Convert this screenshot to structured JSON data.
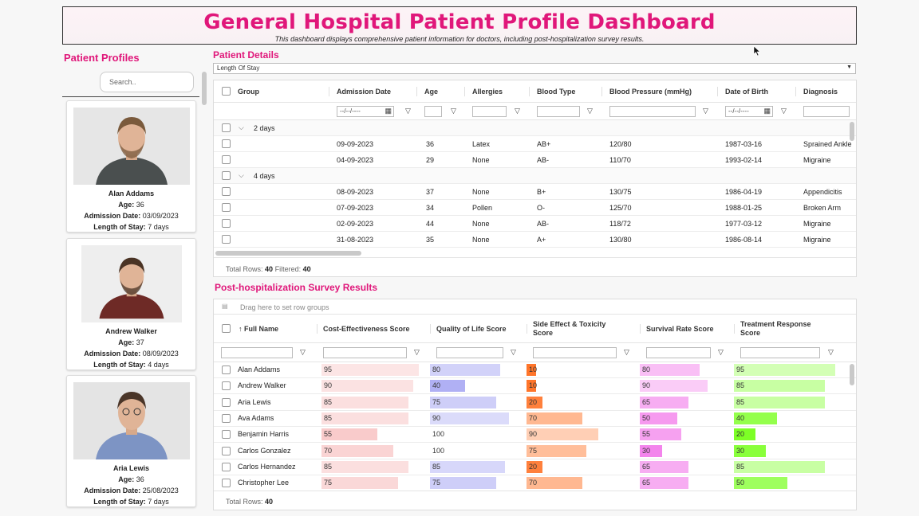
{
  "header": {
    "title": "General Hospital Patient Profile Dashboard",
    "subtitle": "This dashboard displays comprehensive patient information for doctors, including post-hospitalization survey results."
  },
  "profiles": {
    "title": "Patient Profiles",
    "search_placeholder": "Search..",
    "cards": [
      {
        "name": "Alan Addams",
        "age_label": "Age:",
        "age": "36",
        "admission_label": "Admission Date:",
        "admission": "03/09/2023",
        "stay_label": "Length of Stay:",
        "stay": "7 days"
      },
      {
        "name": "Andrew Walker",
        "age_label": "Age:",
        "age": "37",
        "admission_label": "Admission Date:",
        "admission": "08/09/2023",
        "stay_label": "Length of Stay:",
        "stay": "4 days"
      },
      {
        "name": "Aria Lewis",
        "age_label": "Age:",
        "age": "36",
        "admission_label": "Admission Date:",
        "admission": "25/08/2023",
        "stay_label": "Length of Stay:",
        "stay": "7 days"
      }
    ]
  },
  "details": {
    "title": "Patient Details",
    "dropdown_value": "Length Of Stay",
    "columns": [
      "Group",
      "Admission Date",
      "Age",
      "Allergies",
      "Blood Type",
      "Blood Pressure (mmHg)",
      "Date of Birth",
      "Diagnosis"
    ],
    "date_placeholder": "--/--/----",
    "groups": [
      {
        "label": "2 days",
        "rows": [
          [
            "09-09-2023",
            "36",
            "Latex",
            "AB+",
            "120/80",
            "1987-03-16",
            "Sprained Ankle"
          ],
          [
            "04-09-2023",
            "29",
            "None",
            "AB-",
            "110/70",
            "1993-02-14",
            "Migraine"
          ]
        ]
      },
      {
        "label": "4 days",
        "rows": [
          [
            "08-09-2023",
            "37",
            "None",
            "B+",
            "130/75",
            "1986-04-19",
            "Appendicitis"
          ],
          [
            "07-09-2023",
            "34",
            "Pollen",
            "O-",
            "125/70",
            "1988-01-25",
            "Broken Arm"
          ],
          [
            "02-09-2023",
            "44",
            "None",
            "AB-",
            "118/72",
            "1977-03-12",
            "Migraine"
          ],
          [
            "31-08-2023",
            "35",
            "None",
            "A+",
            "130/80",
            "1986-08-14",
            "Migraine"
          ]
        ]
      }
    ],
    "total_rows_label": "Total Rows:",
    "total_rows": "40",
    "filtered_label": "Filtered:",
    "filtered": "40"
  },
  "survey": {
    "title": "Post-hospitalization Survey Results",
    "drag_hint": "Drag here to set row groups",
    "columns": [
      "↑ Full Name",
      "Cost-Effectiveness Score",
      "Quality of Life Score",
      "Side Effect & Toxicity Score",
      "Survival Rate Score",
      "Treatment Response Score"
    ],
    "colors": {
      "cost": "#f4a6a6",
      "quality": "#8f8ff0",
      "side": "#ff6a1a",
      "survival": "#f05fe6",
      "treatment": "#66ff00"
    },
    "rows": [
      {
        "name": "Alan Addams",
        "cost": 95,
        "quality": 80,
        "side": 10,
        "survival": 80,
        "treatment": 95
      },
      {
        "name": "Andrew Walker",
        "cost": 90,
        "quality": 40,
        "side": 10,
        "survival": 90,
        "treatment": 85
      },
      {
        "name": "Aria Lewis",
        "cost": 85,
        "quality": 75,
        "side": 20,
        "survival": 65,
        "treatment": 85
      },
      {
        "name": "Ava Adams",
        "cost": 85,
        "quality": 90,
        "side": 70,
        "survival": 50,
        "treatment": 40
      },
      {
        "name": "Benjamin Harris",
        "cost": 55,
        "quality": 100,
        "side": 90,
        "survival": 55,
        "treatment": 20
      },
      {
        "name": "Carlos Gonzalez",
        "cost": 70,
        "quality": 100,
        "side": 75,
        "survival": 30,
        "treatment": 30
      },
      {
        "name": "Carlos Hernandez",
        "cost": 85,
        "quality": 85,
        "side": 20,
        "survival": 65,
        "treatment": 85
      },
      {
        "name": "Christopher Lee",
        "cost": 75,
        "quality": 75,
        "side": 70,
        "survival": 65,
        "treatment": 50
      }
    ],
    "total_rows_label": "Total Rows:",
    "total_rows": "40"
  }
}
